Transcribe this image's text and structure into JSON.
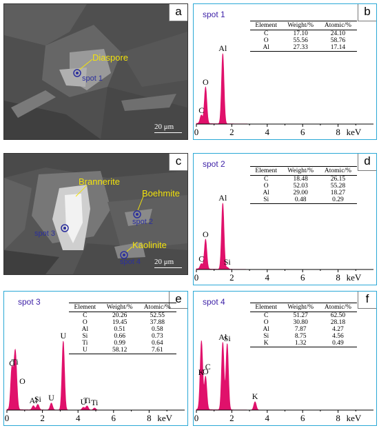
{
  "sem_panels": [
    {
      "label": "a",
      "annotations": [
        "Diaspore"
      ],
      "spots": [
        "spot 1"
      ],
      "scale": "20 μm"
    },
    {
      "label": "c",
      "annotations": [
        "Brannerite",
        "Boehmite",
        "Kaolinite"
      ],
      "spots": [
        "spot 2",
        "spot 3",
        "spot 4"
      ],
      "scale": "20 μm"
    }
  ],
  "table_headers": [
    "Element",
    "Weight/%",
    "Atomic/%"
  ],
  "chart_data": [
    {
      "type": "line",
      "panel": "b",
      "spot": "spot 1",
      "xlabel": "keV",
      "xlim": [
        0,
        10
      ],
      "xticks": [
        "0",
        "2",
        "4",
        "6",
        "8"
      ],
      "peaks": [
        {
          "element": "C",
          "x": 0.28,
          "height": 0.12
        },
        {
          "element": "O",
          "x": 0.52,
          "height": 0.52
        },
        {
          "element": "Al",
          "x": 1.49,
          "height": 1.0
        }
      ],
      "table": [
        [
          "C",
          "17.10",
          "24.10"
        ],
        [
          "O",
          "55.56",
          "58.76"
        ],
        [
          "Al",
          "27.33",
          "17.14"
        ]
      ]
    },
    {
      "type": "line",
      "panel": "d",
      "spot": "spot 2",
      "xlabel": "keV",
      "xlim": [
        0,
        10
      ],
      "xticks": [
        "0",
        "2",
        "4",
        "6",
        "8"
      ],
      "peaks": [
        {
          "element": "C",
          "x": 0.28,
          "height": 0.08
        },
        {
          "element": "O",
          "x": 0.52,
          "height": 0.45
        },
        {
          "element": "Al",
          "x": 1.49,
          "height": 1.0
        },
        {
          "element": "Si",
          "x": 1.74,
          "height": 0.03
        }
      ],
      "table": [
        [
          "C",
          "18.48",
          "26.15"
        ],
        [
          "O",
          "52.03",
          "55.28"
        ],
        [
          "Al",
          "29.00",
          "18.27"
        ],
        [
          "Si",
          "0.48",
          "0.29"
        ]
      ]
    },
    {
      "type": "line",
      "panel": "e",
      "spot": "spot 3",
      "xlabel": "keV",
      "xlim": [
        0,
        10
      ],
      "xticks": [
        "0",
        "2",
        "4",
        "6",
        "8"
      ],
      "peaks": [
        {
          "element": "C",
          "x": 0.28,
          "height": 0.6
        },
        {
          "element": "Ti",
          "x": 0.45,
          "height": 0.62
        },
        {
          "element": "O",
          "x": 0.52,
          "height": 0.34
        },
        {
          "element": "Al",
          "x": 1.49,
          "height": 0.06
        },
        {
          "element": "Si",
          "x": 1.74,
          "height": 0.08
        },
        {
          "element": "U",
          "x": 2.5,
          "height": 0.1
        },
        {
          "element": "U",
          "x": 3.17,
          "height": 1.0
        },
        {
          "element": "U",
          "x": 4.3,
          "height": 0.04
        },
        {
          "element": "Ti",
          "x": 4.51,
          "height": 0.06
        },
        {
          "element": "Ti",
          "x": 4.93,
          "height": 0.03
        }
      ],
      "table": [
        [
          "C",
          "20.26",
          "52.55"
        ],
        [
          "O",
          "19.45",
          "37.88"
        ],
        [
          "Al",
          "0.51",
          "0.58"
        ],
        [
          "Si",
          "0.66",
          "0.73"
        ],
        [
          "Ti",
          "0.99",
          "0.64"
        ],
        [
          "U",
          "58.12",
          "7.61"
        ]
      ]
    },
    {
      "type": "line",
      "panel": "f",
      "spot": "spot 4",
      "xlabel": "keV",
      "xlim": [
        0,
        10
      ],
      "xticks": [
        "0",
        "2",
        "4",
        "6",
        "8"
      ],
      "peaks": [
        {
          "element": "K",
          "x": 0.27,
          "height": 0.47
        },
        {
          "element": "C",
          "x": 0.3,
          "height": 0.55
        },
        {
          "element": "O",
          "x": 0.52,
          "height": 0.48
        },
        {
          "element": "Al",
          "x": 1.49,
          "height": 0.98
        },
        {
          "element": "Si",
          "x": 1.74,
          "height": 0.96
        },
        {
          "element": "K",
          "x": 3.31,
          "height": 0.12
        }
      ],
      "table": [
        [
          "C",
          "51.27",
          "62.50"
        ],
        [
          "O",
          "30.80",
          "28.18"
        ],
        [
          "Al",
          "7.87",
          "4.27"
        ],
        [
          "Si",
          "8.75",
          "4.56"
        ],
        [
          "K",
          "1.32",
          "0.49"
        ]
      ]
    }
  ],
  "colors": {
    "peak": "#e0116b",
    "frame": "#29a8d6",
    "spot_name": "#3b1ea6",
    "annotation": "#f2e20c"
  }
}
